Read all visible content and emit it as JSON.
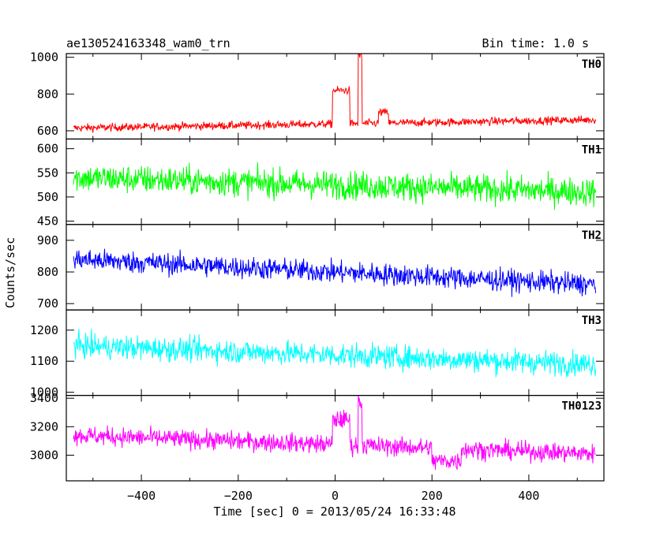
{
  "header": {
    "title": "ae130524163348_wam0_trn",
    "bin_time": "Bin time: 1.0 s"
  },
  "axes": {
    "ylabel": "Counts/sec",
    "xlabel": "Time [sec] 0 = 2013/05/24 16:33:48",
    "x_ticks": [
      "−400",
      "−200",
      "0",
      "200",
      "400"
    ]
  },
  "chart_data": {
    "type": "line",
    "x_range": [
      -555,
      555
    ],
    "x_ticks": [
      -400,
      -200,
      0,
      200,
      400
    ],
    "x_start": -540,
    "x_end": 538,
    "bin_time_s": 1.0,
    "grid": false,
    "panels": [
      {
        "name": "TH0",
        "color": "#ff0000",
        "ylim": [
          555,
          1020
        ],
        "y_ticks": [
          600,
          800,
          1000
        ],
        "baseline_start": 615,
        "baseline_end": 660,
        "noise": 28,
        "features": [
          {
            "x_from": -5,
            "x_to": 30,
            "value": 820
          },
          {
            "x_from": 48,
            "x_to": 55,
            "value": 1010
          },
          {
            "x_from": 90,
            "x_to": 110,
            "value": 700
          }
        ]
      },
      {
        "name": "TH1",
        "color": "#00ff00",
        "ylim": [
          443,
          620
        ],
        "y_ticks": [
          450,
          500,
          550,
          600
        ],
        "baseline_start": 540,
        "baseline_end": 510,
        "noise": 38,
        "features": []
      },
      {
        "name": "TH2",
        "color": "#0000ff",
        "ylim": [
          680,
          950
        ],
        "y_ticks": [
          700,
          800,
          900
        ],
        "baseline_start": 840,
        "baseline_end": 760,
        "noise": 45,
        "features": []
      },
      {
        "name": "TH3",
        "color": "#00ffff",
        "ylim": [
          990,
          1265
        ],
        "y_ticks": [
          1000,
          1100,
          1200
        ],
        "baseline_start": 1150,
        "baseline_end": 1090,
        "noise": 50,
        "features": []
      },
      {
        "name": "TH0123",
        "color": "#ff00ff",
        "ylim": [
          2820,
          3420
        ],
        "y_ticks": [
          3000,
          3200,
          3400
        ],
        "baseline_start": 3140,
        "baseline_end": 3010,
        "noise": 85,
        "features": [
          {
            "x_from": -5,
            "x_to": 30,
            "value": 3250
          },
          {
            "x_from": 48,
            "x_to": 55,
            "value": 3380
          },
          {
            "x_from": 200,
            "x_to": 260,
            "value": 2960
          }
        ]
      }
    ]
  }
}
